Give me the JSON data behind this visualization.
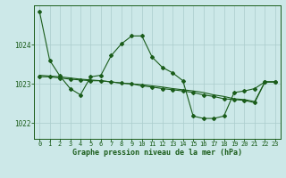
{
  "title": "Graphe pression niveau de la mer (hPa)",
  "background_color": "#cce8e8",
  "grid_color": "#aacccc",
  "line_color": "#1a5c1a",
  "marker_color": "#1a5c1a",
  "text_color": "#1a5c1a",
  "xlim": [
    -0.5,
    23.5
  ],
  "ylim": [
    1021.6,
    1025.0
  ],
  "yticks": [
    1022,
    1023,
    1024
  ],
  "xticks": [
    0,
    1,
    2,
    3,
    4,
    5,
    6,
    7,
    8,
    9,
    10,
    11,
    12,
    13,
    14,
    15,
    16,
    17,
    18,
    19,
    20,
    21,
    22,
    23
  ],
  "series1": [
    1024.85,
    1023.6,
    1023.2,
    1022.88,
    1022.72,
    1023.18,
    1023.22,
    1023.72,
    1024.02,
    1024.22,
    1024.22,
    1023.68,
    1023.42,
    1023.28,
    1023.08,
    1022.18,
    1022.12,
    1022.12,
    1022.18,
    1022.78,
    1022.82,
    1022.88,
    1023.05,
    1023.05
  ],
  "series2": [
    1023.18,
    1023.18,
    1023.15,
    1023.12,
    1023.1,
    1023.08,
    1023.08,
    1023.05,
    1023.02,
    1023.0,
    1022.95,
    1022.92,
    1022.88,
    1022.85,
    1022.82,
    1022.78,
    1022.72,
    1022.68,
    1022.62,
    1022.6,
    1022.58,
    1022.52,
    1023.05,
    1023.05
  ],
  "series3": [
    1023.22,
    1023.2,
    1023.18,
    1023.15,
    1023.12,
    1023.1,
    1023.08,
    1023.05,
    1023.02,
    1023.0,
    1022.98,
    1022.95,
    1022.92,
    1022.88,
    1022.85,
    1022.82,
    1022.78,
    1022.72,
    1022.68,
    1022.62,
    1022.6,
    1022.55,
    1023.05,
    1023.05
  ]
}
